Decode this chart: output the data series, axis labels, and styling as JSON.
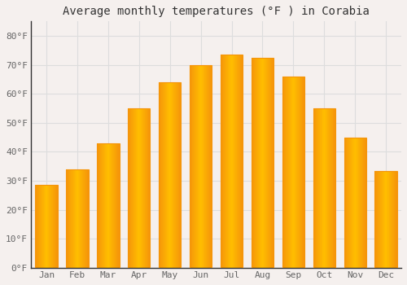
{
  "months": [
    "Jan",
    "Feb",
    "Mar",
    "Apr",
    "May",
    "Jun",
    "Jul",
    "Aug",
    "Sep",
    "Oct",
    "Nov",
    "Dec"
  ],
  "values": [
    28.5,
    34,
    43,
    55,
    64,
    70,
    73.5,
    72.5,
    66,
    55,
    45,
    33.5
  ],
  "bar_color_center": "#FFBE00",
  "bar_color_edge": "#F5950A",
  "title": "Average monthly temperatures (°F ) in Corabia",
  "ylim": [
    0,
    85
  ],
  "yticks": [
    0,
    10,
    20,
    30,
    40,
    50,
    60,
    70,
    80
  ],
  "ytick_labels": [
    "0°F",
    "10°F",
    "20°F",
    "30°F",
    "40°F",
    "50°F",
    "60°F",
    "70°F",
    "80°F"
  ],
  "background_color": "#f5f0ee",
  "plot_bg_color": "#f5f0ee",
  "grid_color": "#dddddd",
  "title_fontsize": 10,
  "tick_fontsize": 8,
  "axis_color": "#888888",
  "spine_color": "#333333"
}
